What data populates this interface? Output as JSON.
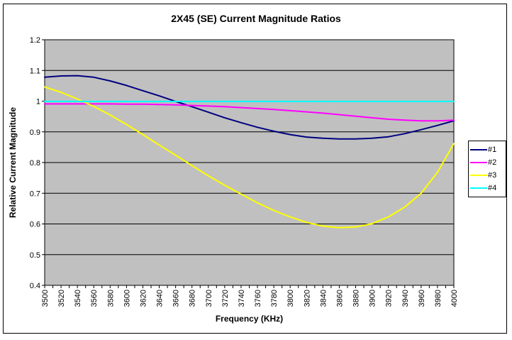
{
  "chart_data": {
    "type": "line",
    "title": "2X45 (SE) Current Magnitude Ratios",
    "xlabel": "Frequency (KHz)",
    "ylabel": "Relative Current Magnitude",
    "xlim": [
      3500,
      4000
    ],
    "ylim": [
      0.4,
      1.2
    ],
    "ytick_step": 0.1,
    "minor_xtick_step": 10,
    "grid": true,
    "legend_position": "right",
    "plot_bg": "#c0c0c0",
    "grid_color": "#000000",
    "axis_color": "#000000",
    "background": "#ffffff",
    "x": [
      3500,
      3520,
      3540,
      3560,
      3580,
      3600,
      3620,
      3640,
      3660,
      3680,
      3700,
      3720,
      3740,
      3760,
      3780,
      3800,
      3820,
      3840,
      3860,
      3880,
      3900,
      3920,
      3940,
      3960,
      3980,
      4000
    ],
    "series": [
      {
        "name": "#1",
        "color": "#000080",
        "values": [
          1.078,
          1.082,
          1.083,
          1.078,
          1.066,
          1.051,
          1.034,
          1.017,
          0.999,
          0.982,
          0.964,
          0.946,
          0.93,
          0.915,
          0.902,
          0.891,
          0.883,
          0.879,
          0.877,
          0.877,
          0.879,
          0.884,
          0.894,
          0.907,
          0.921,
          0.936
        ]
      },
      {
        "name": "#2",
        "color": "#ff00ff",
        "values": [
          0.991,
          0.991,
          0.991,
          0.991,
          0.991,
          0.99,
          0.99,
          0.989,
          0.988,
          0.986,
          0.984,
          0.982,
          0.979,
          0.976,
          0.973,
          0.969,
          0.965,
          0.961,
          0.956,
          0.951,
          0.946,
          0.941,
          0.938,
          0.936,
          0.936,
          0.938
        ]
      },
      {
        "name": "#3",
        "color": "#ffff00",
        "values": [
          1.046,
          1.029,
          1.007,
          0.983,
          0.955,
          0.924,
          0.891,
          0.857,
          0.824,
          0.79,
          0.757,
          0.726,
          0.697,
          0.669,
          0.644,
          0.623,
          0.605,
          0.593,
          0.588,
          0.59,
          0.601,
          0.623,
          0.655,
          0.7,
          0.768,
          0.862
        ]
      },
      {
        "name": "#4",
        "color": "#00ffff",
        "values": [
          0.999,
          0.999,
          0.999,
          0.999,
          0.999,
          0.999,
          0.999,
          0.999,
          0.999,
          0.999,
          0.999,
          0.999,
          0.999,
          0.999,
          0.999,
          0.999,
          0.999,
          0.999,
          0.999,
          0.999,
          0.999,
          0.999,
          0.999,
          0.999,
          0.999,
          0.999
        ]
      }
    ]
  }
}
